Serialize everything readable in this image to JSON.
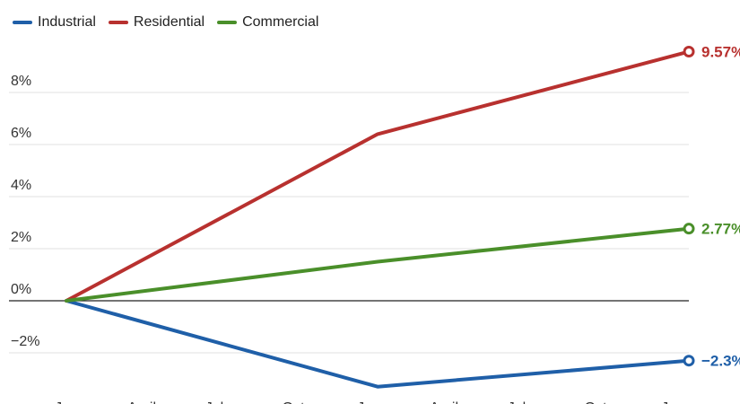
{
  "chart_data": {
    "type": "line",
    "title": "",
    "xlabel": "",
    "ylabel": "",
    "x_tick_labels": [
      "Jan",
      "April",
      "July",
      "Oct",
      "Jan",
      "April",
      "July",
      "Oct",
      "Jan"
    ],
    "ylim": [
      -3.5,
      10
    ],
    "y_ticks": [
      -2,
      0,
      2,
      4,
      6,
      8
    ],
    "y_tick_labels": [
      "−2%",
      "0%",
      "2%",
      "4%",
      "6%",
      "8%"
    ],
    "grid": true,
    "legend_position": "top-left",
    "series": [
      {
        "name": "Industrial",
        "color": "#1f5fa8",
        "x": [
          0,
          12,
          24
        ],
        "values": [
          0,
          -3.3,
          -2.3
        ],
        "end_label": "−2.3%"
      },
      {
        "name": "Residential",
        "color": "#b8312f",
        "x": [
          0,
          12,
          24
        ],
        "values": [
          0,
          6.4,
          9.57
        ],
        "end_label": "9.57%"
      },
      {
        "name": "Commercial",
        "color": "#4a8f2a",
        "x": [
          0,
          12,
          24
        ],
        "values": [
          0,
          1.5,
          2.77
        ],
        "end_label": "2.77%"
      }
    ]
  }
}
